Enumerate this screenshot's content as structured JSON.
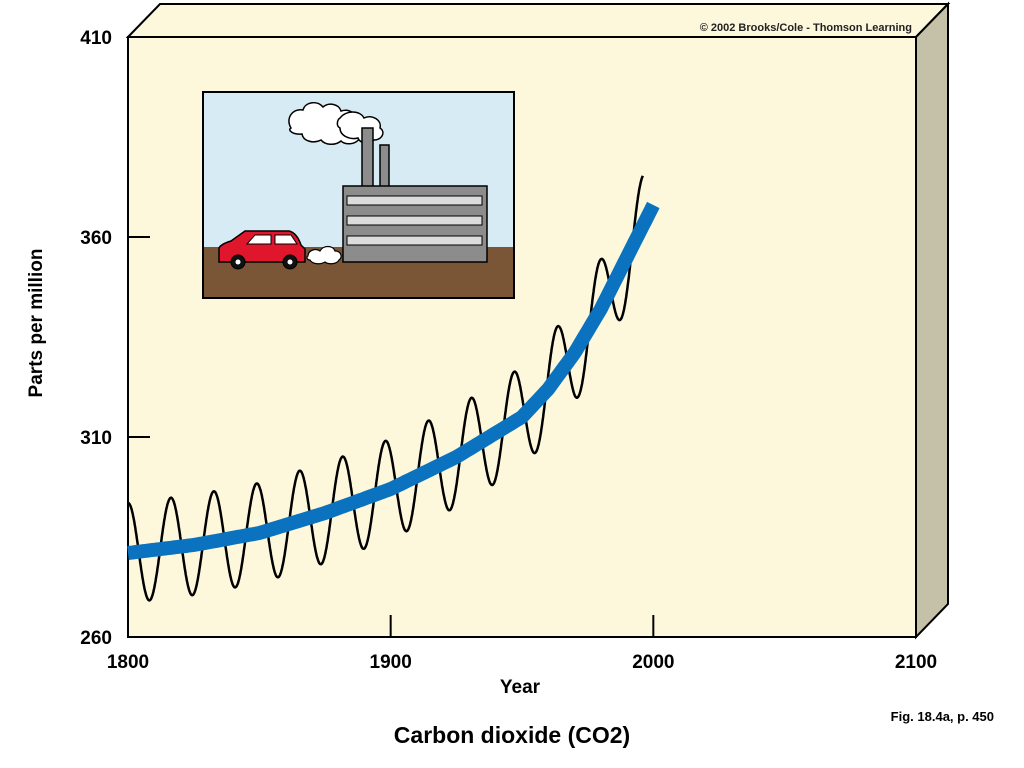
{
  "credit": "© 2002 Brooks/Cole - Thomson Learning",
  "caption": "Carbon dioxide (CO2)",
  "figure_ref": "Fig. 18.4a, p. 450",
  "colors": {
    "panel": "#fdf8dc",
    "panel_side": "#c4c1a8",
    "trend": "#0a72bf",
    "sky": "#d7ebf5",
    "ground": "#7a5536",
    "car": "#e0172c",
    "factory": "#8c8c8c"
  },
  "chart_data": {
    "type": "line",
    "title": "",
    "xlabel": "Year",
    "ylabel": "Parts per million",
    "xlim": [
      1800,
      2100
    ],
    "ylim": [
      260,
      410
    ],
    "x_ticks": [
      "1800",
      "1900",
      "2000",
      "2100"
    ],
    "y_ticks": [
      "260",
      "310",
      "360",
      "410"
    ],
    "grid": false,
    "trend": {
      "x": [
        1800,
        1825,
        1850,
        1875,
        1900,
        1925,
        1950,
        1960,
        1970,
        1980,
        1990,
        2000
      ],
      "y": [
        281,
        283,
        286,
        291,
        297,
        305,
        315,
        322,
        331,
        342,
        355,
        368
      ]
    },
    "seasonal_cycle": {
      "x_start": 1800,
      "x_end": 1996,
      "cycles": 12,
      "amplitude_ppm": 12.5
    }
  }
}
